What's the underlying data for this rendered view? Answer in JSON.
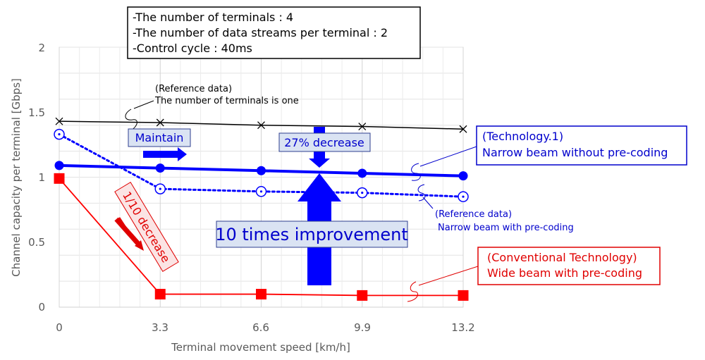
{
  "chart_data": {
    "type": "line",
    "xlabel": "Terminal movement speed [km/h]",
    "ylabel": "Channel capacity per terminal [Gbps]",
    "x_ticks": [
      "0",
      "3.3",
      "6.6",
      "9.9",
      "13.2"
    ],
    "y_ticks": [
      "0",
      "0.5",
      "1",
      "1.5",
      "2"
    ],
    "xlim": [
      0,
      13.2
    ],
    "ylim": [
      0,
      2
    ],
    "x": [
      0,
      3.3,
      6.6,
      9.9,
      13.2
    ],
    "series": [
      {
        "name": "Reference data: number of terminals is one",
        "color": "#000000",
        "marker": "x",
        "values": [
          1.43,
          1.42,
          1.4,
          1.39,
          1.37
        ]
      },
      {
        "name": "Technology.1: Narrow beam without pre-coding",
        "color": "#0000ff",
        "marker": "dot",
        "values": [
          1.09,
          1.07,
          1.05,
          1.03,
          1.01
        ]
      },
      {
        "name": "Reference data: Narrow beam with pre-coding",
        "color": "#0000ff",
        "marker": "circle-dot",
        "values": [
          1.33,
          0.91,
          0.89,
          0.88,
          0.85
        ]
      },
      {
        "name": "Conventional Technology: Wide beam with pre-coding",
        "color": "#ff0000",
        "marker": "square",
        "values": [
          0.99,
          0.1,
          0.1,
          0.09,
          0.09
        ]
      }
    ],
    "info_box": [
      "-The number of terminals : 4",
      "-The number of data streams per terminal : 2",
      "-Control cycle : 40ms"
    ],
    "annotations": {
      "ref_single_line1": "(Reference data)",
      "ref_single_line2": "The number of terminals is one",
      "maintain": "Maintain",
      "decrease27": "27% decrease",
      "improvement": "10 times improvement",
      "decrease110": "1/10 decrease",
      "tech1_line1": "(Technology.1)",
      "tech1_line2": "Narrow beam without pre-coding",
      "ref_narrow_line1": "(Reference data)",
      "ref_narrow_line2": "Narrow beam with pre-coding",
      "conv_line1": "(Conventional Technology)",
      "conv_line2": "Wide beam with pre-coding"
    }
  }
}
